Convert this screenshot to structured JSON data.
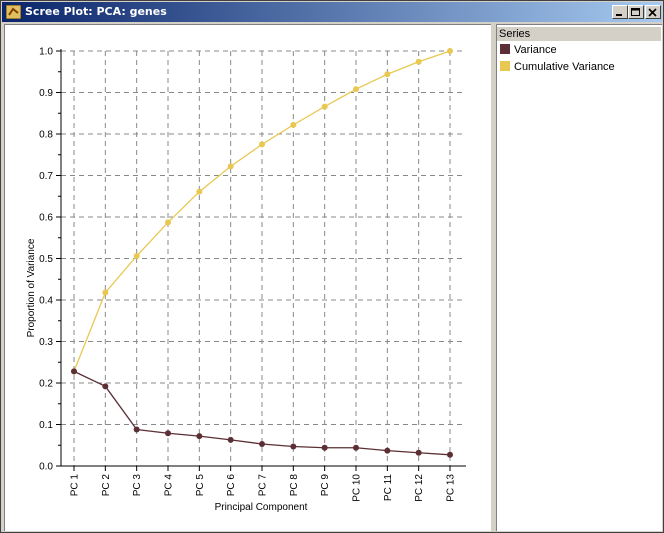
{
  "window": {
    "title": "Scree Plot: PCA: genes",
    "buttons": {
      "minimize": "minimize",
      "maximize": "maximize",
      "close": "close"
    }
  },
  "legend": {
    "header": "Series",
    "items": [
      {
        "label": "Variance",
        "color": "#5b2f35"
      },
      {
        "label": "Cumulative Variance",
        "color": "#e8c851"
      }
    ]
  },
  "chart_data": {
    "type": "line",
    "title": "",
    "xlabel": "Principal Component",
    "ylabel": "Proportion of Variance",
    "categories": [
      "PC 1",
      "PC 2",
      "PC 3",
      "PC 4",
      "PC 5",
      "PC 6",
      "PC 7",
      "PC 8",
      "PC 9",
      "PC 10",
      "PC 11",
      "PC 12",
      "PC 13"
    ],
    "ylim": [
      0,
      1.0
    ],
    "yticks": [
      "0.0",
      "0.1",
      "0.2",
      "0.3",
      "0.4",
      "0.5",
      "0.6",
      "0.7",
      "0.8",
      "0.9",
      "1.0"
    ],
    "grid": true,
    "legend": "right",
    "series": [
      {
        "name": "Variance",
        "color": "#5b2f35",
        "values": [
          0.228,
          0.192,
          0.088,
          0.079,
          0.072,
          0.063,
          0.053,
          0.047,
          0.044,
          0.044,
          0.037,
          0.032,
          0.027
        ]
      },
      {
        "name": "Cumulative Variance",
        "color": "#e8c851",
        "values": [
          0.228,
          0.418,
          0.506,
          0.587,
          0.661,
          0.722,
          0.775,
          0.822,
          0.866,
          0.908,
          0.944,
          0.974,
          1.0
        ]
      }
    ]
  }
}
